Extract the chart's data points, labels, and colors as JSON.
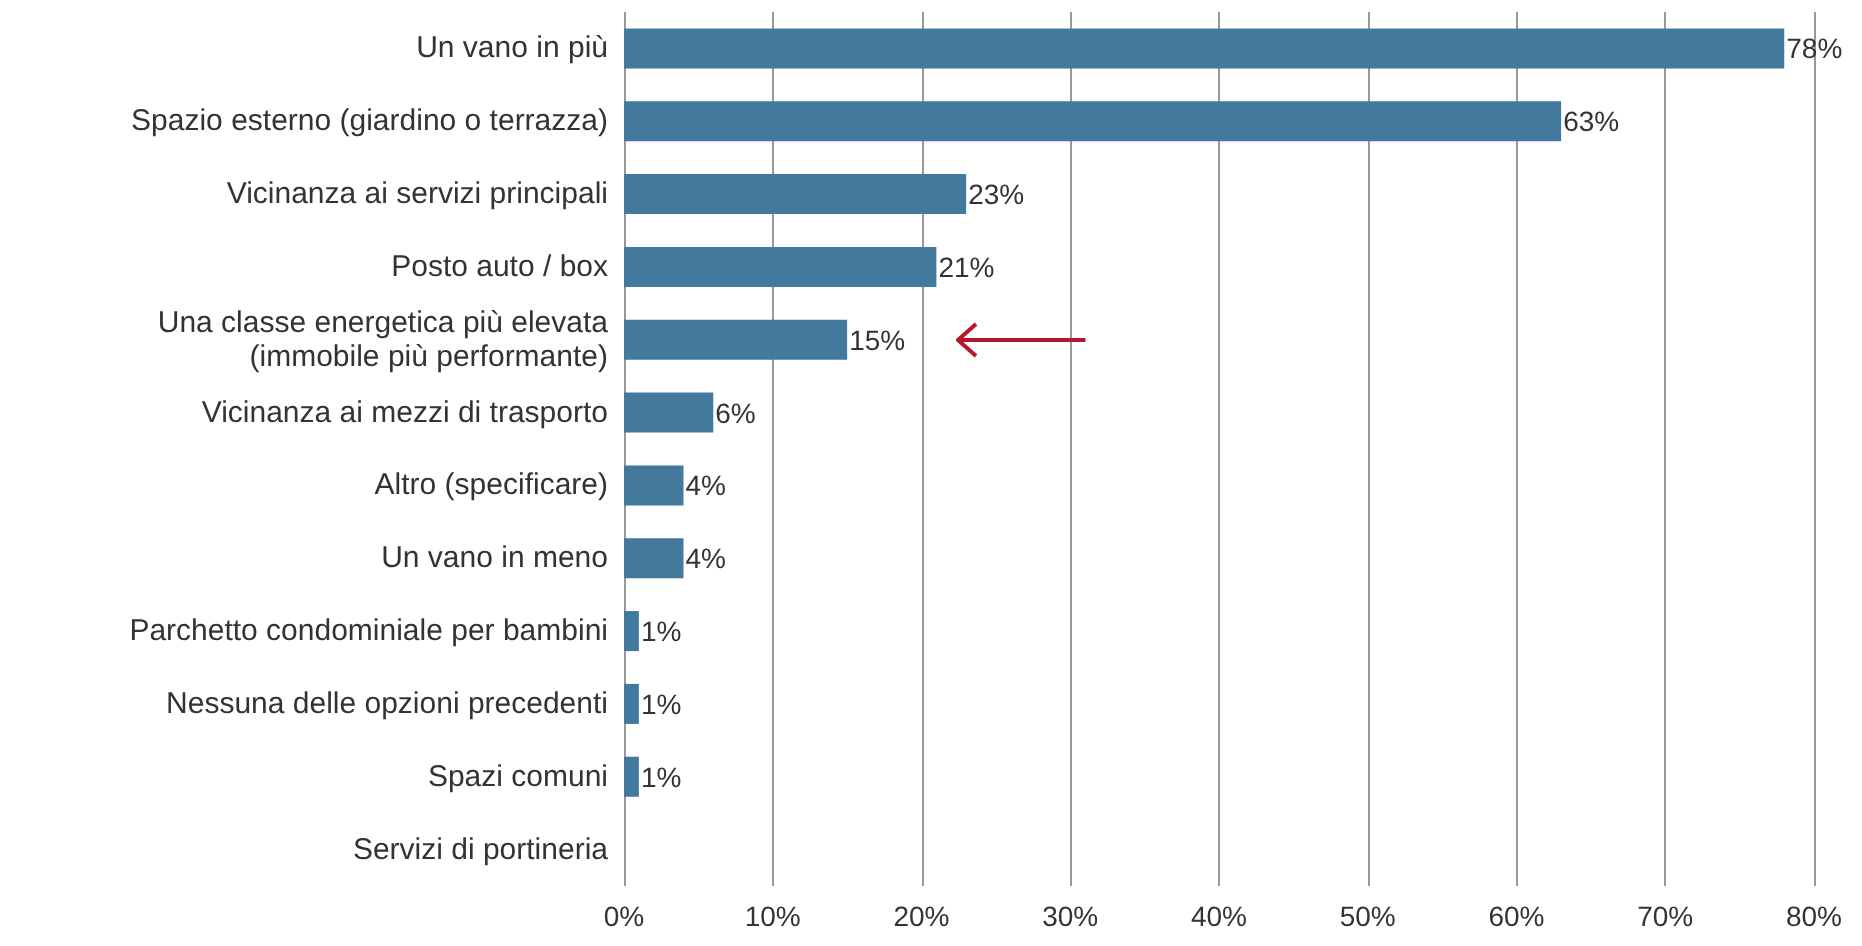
{
  "chart_data": {
    "type": "bar",
    "orientation": "horizontal",
    "categories": [
      "Un vano in più",
      "Spazio esterno (giardino o terrazza)",
      "Vicinanza ai servizi principali",
      "Posto auto / box",
      "Una classe energetica più elevata\n(immobile più performante)",
      "Vicinanza ai mezzi di trasporto",
      "Altro (specificare)",
      "Un vano in meno",
      "Parchetto condominiale per bambini",
      "Nessuna delle opzioni precedenti",
      "Spazi comuni",
      "Servizi di portineria"
    ],
    "values": [
      78,
      63,
      23,
      21,
      15,
      6,
      4,
      4,
      1,
      1,
      1,
      0
    ],
    "value_labels": [
      "78%",
      "63%",
      "23%",
      "21%",
      "15%",
      "6%",
      "4%",
      "4%",
      "1%",
      "1%",
      "1%",
      null
    ],
    "color": "#44799e",
    "xlim": [
      0,
      80
    ],
    "xticks": [
      {
        "value": 0,
        "label": "0%"
      },
      {
        "value": 10,
        "label": "10%"
      },
      {
        "value": 20,
        "label": "20%"
      },
      {
        "value": 30,
        "label": "30%"
      },
      {
        "value": 40,
        "label": "40%"
      },
      {
        "value": 50,
        "label": "50%"
      },
      {
        "value": 60,
        "label": "60%"
      },
      {
        "value": 70,
        "label": "70%"
      },
      {
        "value": 80,
        "label": "80%"
      }
    ],
    "grid": "x"
  }
}
